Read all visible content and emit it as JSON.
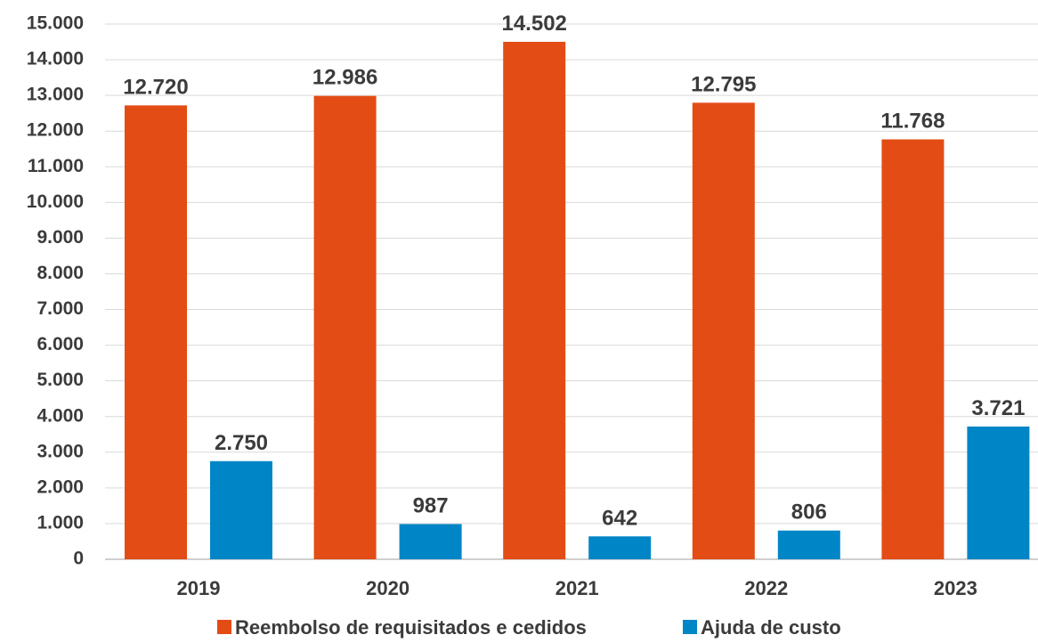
{
  "chart_data": {
    "type": "bar",
    "title": "",
    "xlabel": "",
    "ylabel": "",
    "categories": [
      "2019",
      "2020",
      "2021",
      "2022",
      "2023"
    ],
    "series": [
      {
        "name": "Reembolso de requisitados e cedidos",
        "color": "#e34c14",
        "values": [
          12720,
          12986,
          14502,
          12795,
          11768
        ],
        "labels": [
          "12.720",
          "12.986",
          "14.502",
          "12.795",
          "11.768"
        ]
      },
      {
        "name": "Ajuda de custo",
        "color": "#0086c6",
        "values": [
          2750,
          987,
          642,
          806,
          3721
        ],
        "labels": [
          "2.750",
          "987",
          "642",
          "806",
          "3.721"
        ]
      }
    ],
    "ylim": [
      0,
      15000
    ],
    "yticks": [
      0,
      1000,
      2000,
      3000,
      4000,
      5000,
      6000,
      7000,
      8000,
      9000,
      10000,
      11000,
      12000,
      13000,
      14000,
      15000
    ],
    "ytick_labels": [
      "0",
      "1.000",
      "2.000",
      "3.000",
      "4.000",
      "5.000",
      "6.000",
      "7.000",
      "8.000",
      "9.000",
      "10.000",
      "11.000",
      "12.000",
      "13.000",
      "14.000",
      "15.000"
    ],
    "grid": true,
    "legend_position": "bottom"
  }
}
